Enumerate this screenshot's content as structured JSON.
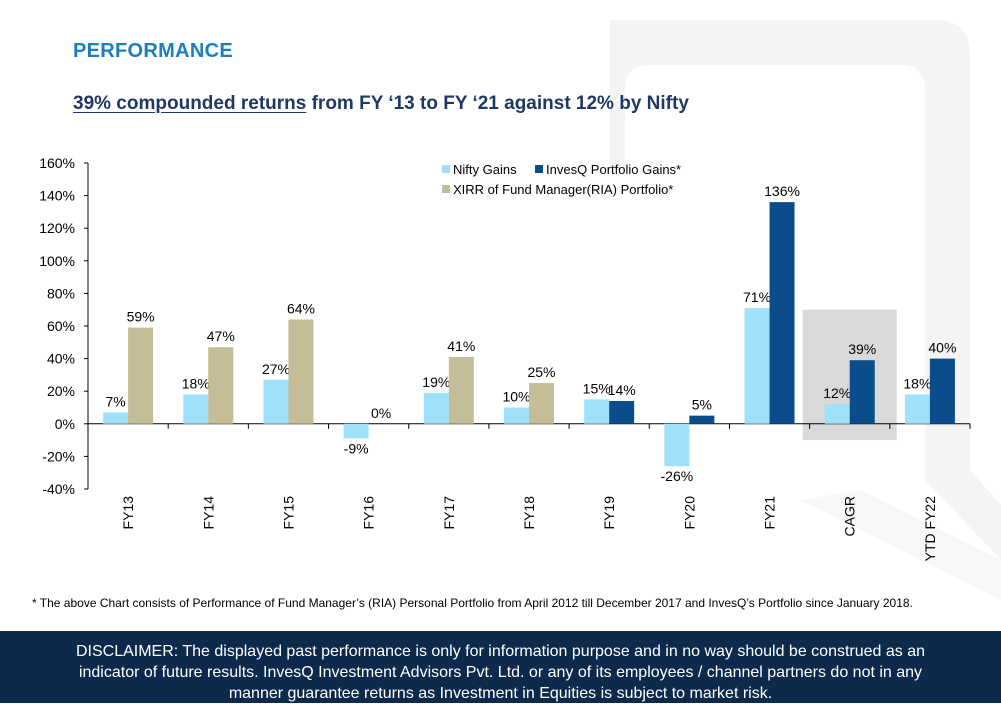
{
  "header": {
    "section_title": "PERFORMANCE",
    "headline_emphasis": "39% compounded returns",
    "headline_rest": " from FY ‘13 to FY ‘21 against 12% by Nifty"
  },
  "chart_data": {
    "type": "bar",
    "categories": [
      "FY13",
      "FY14",
      "FY15",
      "FY16",
      "FY17",
      "FY18",
      "FY19",
      "FY20",
      "FY21",
      "CAGR",
      "YTD FY22"
    ],
    "series": [
      {
        "name": "Nifty Gains",
        "color": "#9fe1fb",
        "values": [
          7,
          18,
          27,
          -9,
          19,
          10,
          15,
          -26,
          71,
          12,
          18
        ],
        "labels": [
          "7%",
          "18%",
          "27%",
          "-9%",
          "19%",
          "10%",
          "15%",
          "-26%",
          "71%",
          "12%",
          "18%"
        ]
      },
      {
        "name": "InvesQ Portfolio Gains*",
        "color": "#0b4d8c",
        "values": [
          null,
          null,
          null,
          null,
          null,
          null,
          14,
          5,
          136,
          39,
          40
        ],
        "labels": [
          null,
          null,
          null,
          null,
          null,
          null,
          "14%",
          "5%",
          "136%",
          "39%",
          "40%"
        ]
      },
      {
        "name": "XIRR of Fund Manager(RIA) Portfolio*",
        "color": "#c4bd97",
        "values": [
          59,
          47,
          64,
          0,
          41,
          25,
          null,
          null,
          null,
          null,
          null
        ],
        "labels": [
          "59%",
          "47%",
          "64%",
          "0%",
          "41%",
          "25%",
          null,
          null,
          null,
          null,
          null
        ]
      }
    ],
    "ylim": [
      -40,
      160
    ],
    "yticks": [
      -40,
      -20,
      0,
      20,
      40,
      60,
      80,
      100,
      120,
      140,
      160
    ],
    "ytick_labels": [
      "-40%",
      "-20%",
      "0%",
      "20%",
      "40%",
      "60%",
      "80%",
      "100%",
      "120%",
      "140%",
      "160%"
    ],
    "highlight_category": "CAGR",
    "legend_position": "top-right",
    "title": "",
    "xlabel": "",
    "ylabel": ""
  },
  "footnote": "* The above Chart consists of Performance of Fund Manager’s (RIA) Personal Portfolio from April 2012 till December 2017 and InvesQ’s Portfolio since January 2018.",
  "disclaimer": {
    "line1": "DISCLAIMER: The displayed past performance is only for information purpose and in no way should be construed as an",
    "line2": "indicator of future results. InvesQ Investment Advisors Pvt. Ltd. or any of its employees / channel partners do not in any",
    "line3": "manner guarantee returns as Investment in Equities is subject to market risk."
  }
}
